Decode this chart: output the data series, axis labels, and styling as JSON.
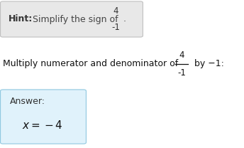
{
  "hint_bold": "Hint:",
  "hint_text": " Simplify the sign of ",
  "hint_frac_num": "4",
  "hint_frac_den": "-1",
  "hint_period": ".",
  "hint_box_color": "#e8e8e8",
  "hint_box_edge": "#c0c0c0",
  "middle_text_left": "Multiply numerator and denominator of ",
  "middle_frac_num": "4",
  "middle_frac_den": "-1",
  "middle_text_right": " by −1:",
  "answer_label": "Answer:",
  "answer_box_color": "#e0f2fb",
  "answer_box_edge": "#90c8e0",
  "bg_color": "#ffffff",
  "fig_width": 3.44,
  "fig_height": 2.08,
  "dpi": 100
}
